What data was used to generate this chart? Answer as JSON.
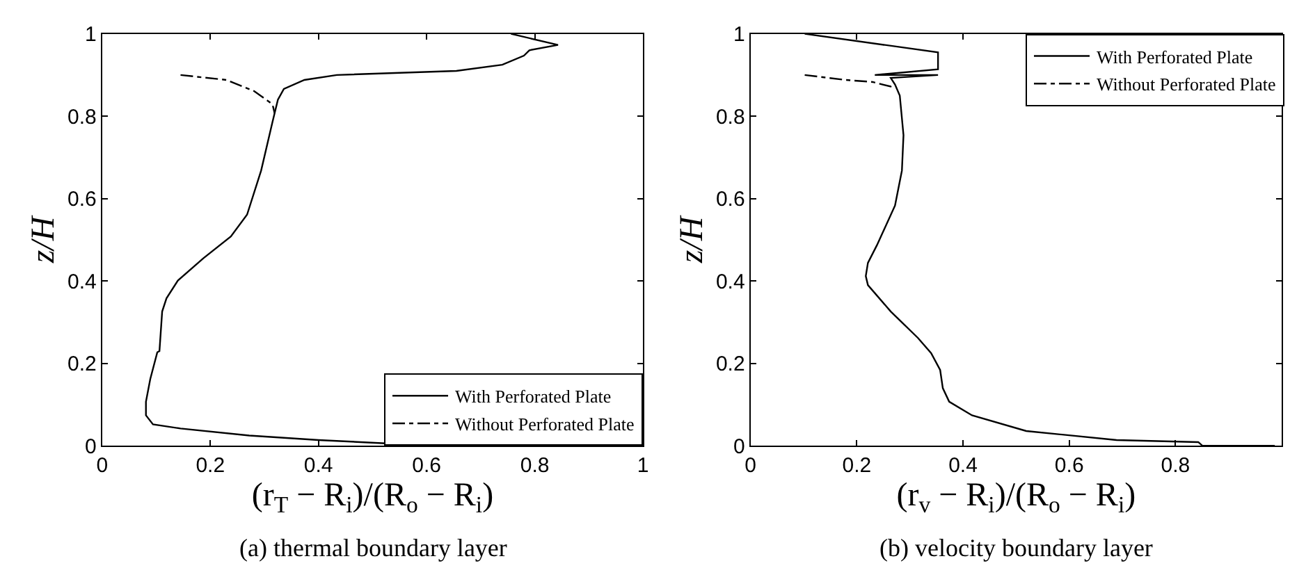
{
  "chart_data": [
    {
      "type": "line",
      "xlabel": "(r$_{T}$ − R$_{i}$)/(R$_{o}$ − R$_{i}$)",
      "ylabel": "z/H",
      "xlim": [
        0,
        1
      ],
      "ylim": [
        0,
        1
      ],
      "xticks": [
        0,
        0.2,
        0.4,
        0.6,
        0.8,
        1
      ],
      "yticks": [
        0,
        0.2,
        0.4,
        0.6,
        0.8,
        1
      ],
      "legend": "bottom right",
      "annotations": [
        "(a) thermal boundary layer"
      ],
      "series": [
        {
          "name": "With Perforated Plate",
          "color": "#000000",
          "line_style": "solid",
          "x": [
            0.756,
            0.843,
            0.79,
            0.78,
            0.74,
            0.655,
            0.434,
            0.374,
            0.336,
            0.325,
            0.315,
            0.294,
            0.268,
            0.238,
            0.187,
            0.14,
            0.119,
            0.111,
            0.106,
            0.102,
            0.089,
            0.081,
            0.081,
            0.094,
            0.145,
            0.272,
            0.4,
            0.57,
            0.72
          ],
          "values": [
            1.0,
            0.973,
            0.96,
            0.947,
            0.925,
            0.91,
            0.9,
            0.888,
            0.866,
            0.84,
            0.786,
            0.668,
            0.561,
            0.508,
            0.455,
            0.401,
            0.358,
            0.326,
            0.23,
            0.227,
            0.162,
            0.107,
            0.074,
            0.052,
            0.042,
            0.025,
            0.014,
            0.003,
            0.0
          ]
        },
        {
          "name": "Without Perforated Plate",
          "color": "#000000",
          "line_style": "dashed",
          "x": [
            0.145,
            0.23,
            0.281,
            0.315,
            0.319
          ],
          "values": [
            0.9,
            0.888,
            0.861,
            0.829,
            0.807
          ]
        }
      ]
    },
    {
      "type": "line",
      "xlabel": "(r$_{v}$ − R$_{i}$)/(R$_{o}$ − R$_{i}$)",
      "ylabel": "z/H",
      "xlim": [
        0,
        1
      ],
      "ylim": [
        0,
        1
      ],
      "xticks": [
        0,
        0.2,
        0.4,
        0.6,
        0.8
      ],
      "yticks": [
        0,
        0.2,
        0.4,
        0.6,
        0.8,
        1
      ],
      "legend": "top right",
      "annotations": [
        "(b) velocity boundary layer"
      ],
      "series": [
        {
          "name": "With Perforated Plate",
          "color": "#000000",
          "line_style": "solid",
          "x": [
            0.102,
            0.353,
            0.353,
            0.234,
            0.353,
            0.264,
            0.272,
            0.281,
            0.288,
            0.285,
            0.272,
            0.238,
            0.221,
            0.217,
            0.221,
            0.264,
            0.315,
            0.34,
            0.357,
            0.362,
            0.374,
            0.417,
            0.519,
            0.689,
            0.843,
            0.851,
            0.987
          ],
          "values": [
            1.0,
            0.955,
            0.914,
            0.9,
            0.9,
            0.893,
            0.877,
            0.85,
            0.754,
            0.668,
            0.583,
            0.487,
            0.444,
            0.412,
            0.39,
            0.326,
            0.262,
            0.225,
            0.184,
            0.14,
            0.107,
            0.074,
            0.036,
            0.014,
            0.009,
            0.0,
            0.0
          ]
        },
        {
          "name": "Without Perforated Plate",
          "color": "#000000",
          "line_style": "dashed",
          "x": [
            0.102,
            0.179,
            0.23,
            0.264,
            0.272
          ],
          "values": [
            0.9,
            0.888,
            0.883,
            0.872,
            0.877
          ]
        }
      ]
    }
  ]
}
